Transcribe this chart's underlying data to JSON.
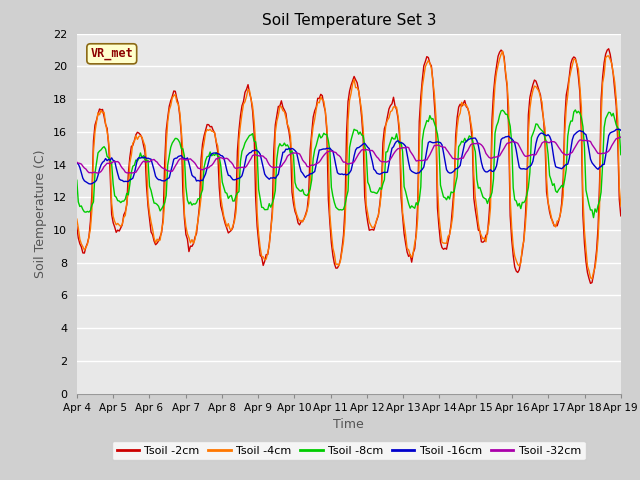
{
  "title": "Soil Temperature Set 3",
  "xlabel": "Time",
  "ylabel": "Soil Temperature (C)",
  "ylim": [
    0,
    22
  ],
  "yticks": [
    0,
    2,
    4,
    6,
    8,
    10,
    12,
    14,
    16,
    18,
    20,
    22
  ],
  "date_labels": [
    "Apr 4",
    "Apr 5",
    "Apr 6",
    "Apr 7",
    "Apr 8",
    "Apr 9",
    "Apr 10",
    "Apr 11",
    "Apr 12",
    "Apr 13",
    "Apr 14",
    "Apr 15",
    "Apr 16",
    "Apr 17",
    "Apr 18",
    "Apr 19"
  ],
  "series_colors": [
    "#cc0000",
    "#ff7700",
    "#00cc00",
    "#0000cc",
    "#aa00aa"
  ],
  "series_labels": [
    "Tsoil -2cm",
    "Tsoil -4cm",
    "Tsoil -8cm",
    "Tsoil -16cm",
    "Tsoil -32cm"
  ],
  "annotation_text": "VR_met",
  "annotation_bg": "#ffffcc",
  "annotation_border": "#8b6914",
  "fig_bg": "#d0d0d0",
  "plot_bg": "#e8e8e8",
  "grid_color": "#ffffff"
}
